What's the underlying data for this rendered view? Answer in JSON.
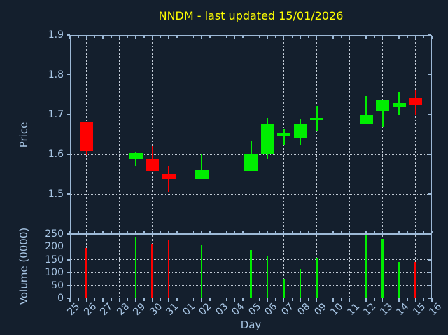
{
  "figure": {
    "title": "NNDM - last updated 15/01/2026",
    "background": "#141f2d"
  },
  "colors": {
    "up": "#00ee00",
    "down": "#ff0000",
    "title": "#ffff00",
    "axis_text": "#a9c7e6",
    "spine": "#9db9d6",
    "grid": "#c2cbd6"
  },
  "chart_data": [
    {
      "type": "candlestick",
      "title": "NNDM - last updated 15/01/2026",
      "xlabel": "Day",
      "ylabel": "Price",
      "ylim": [
        1.4,
        1.9
      ],
      "yticks": [
        1.9,
        1.8,
        1.7,
        1.6,
        1.5
      ],
      "ytick_labels": [
        "1.9",
        "1.8",
        "1.7",
        "1.6",
        "1.5"
      ],
      "x_labels": [
        "25",
        "26",
        "27",
        "28",
        "29",
        "30",
        "31",
        "01",
        "02",
        "03",
        "04",
        "05",
        "06",
        "07",
        "08",
        "09",
        "10",
        "11",
        "12",
        "13",
        "14",
        "15",
        "16"
      ],
      "grid_days": [
        "26",
        "28",
        "30",
        "01",
        "03",
        "05",
        "07",
        "09",
        "11",
        "13",
        "15"
      ],
      "grid_style": "dotted",
      "legend": "none",
      "ohlc": [
        {
          "day": "26",
          "open": 1.68,
          "high": 1.68,
          "low": 1.598,
          "close": 1.608
        },
        {
          "day": "29",
          "open": 1.59,
          "high": 1.605,
          "low": 1.57,
          "close": 1.603
        },
        {
          "day": "30",
          "open": 1.59,
          "high": 1.621,
          "low": 1.557,
          "close": 1.557
        },
        {
          "day": "31",
          "open": 1.551,
          "high": 1.571,
          "low": 1.506,
          "close": 1.539
        },
        {
          "day": "02",
          "open": 1.539,
          "high": 1.602,
          "low": 1.539,
          "close": 1.559
        },
        {
          "day": "05",
          "open": 1.558,
          "high": 1.633,
          "low": 1.558,
          "close": 1.601
        },
        {
          "day": "06",
          "open": 1.6,
          "high": 1.691,
          "low": 1.588,
          "close": 1.677
        },
        {
          "day": "07",
          "open": 1.645,
          "high": 1.663,
          "low": 1.623,
          "close": 1.652
        },
        {
          "day": "08",
          "open": 1.64,
          "high": 1.69,
          "low": 1.624,
          "close": 1.676
        },
        {
          "day": "09",
          "open": 1.687,
          "high": 1.721,
          "low": 1.659,
          "close": 1.691
        },
        {
          "day": "12",
          "open": 1.676,
          "high": 1.746,
          "low": 1.676,
          "close": 1.7
        },
        {
          "day": "13",
          "open": 1.708,
          "high": 1.736,
          "low": 1.669,
          "close": 1.736
        },
        {
          "day": "14",
          "open": 1.719,
          "high": 1.757,
          "low": 1.7,
          "close": 1.73
        },
        {
          "day": "15",
          "open": 1.742,
          "high": 1.761,
          "low": 1.7,
          "close": 1.724
        }
      ]
    },
    {
      "type": "bar",
      "ylabel": "Volume (0000)",
      "ylim": [
        0,
        250
      ],
      "yticks": [
        250,
        200,
        150,
        100,
        50,
        0
      ],
      "ytick_labels": [
        "250",
        "200",
        "150",
        "100",
        "50",
        "0"
      ],
      "categories": [
        "26",
        "29",
        "30",
        "31",
        "02",
        "05",
        "06",
        "07",
        "08",
        "09",
        "12",
        "13",
        "14",
        "15"
      ],
      "values": [
        197,
        240,
        211,
        228,
        206,
        188,
        164,
        73,
        113,
        154,
        245,
        230,
        140,
        140
      ]
    }
  ]
}
